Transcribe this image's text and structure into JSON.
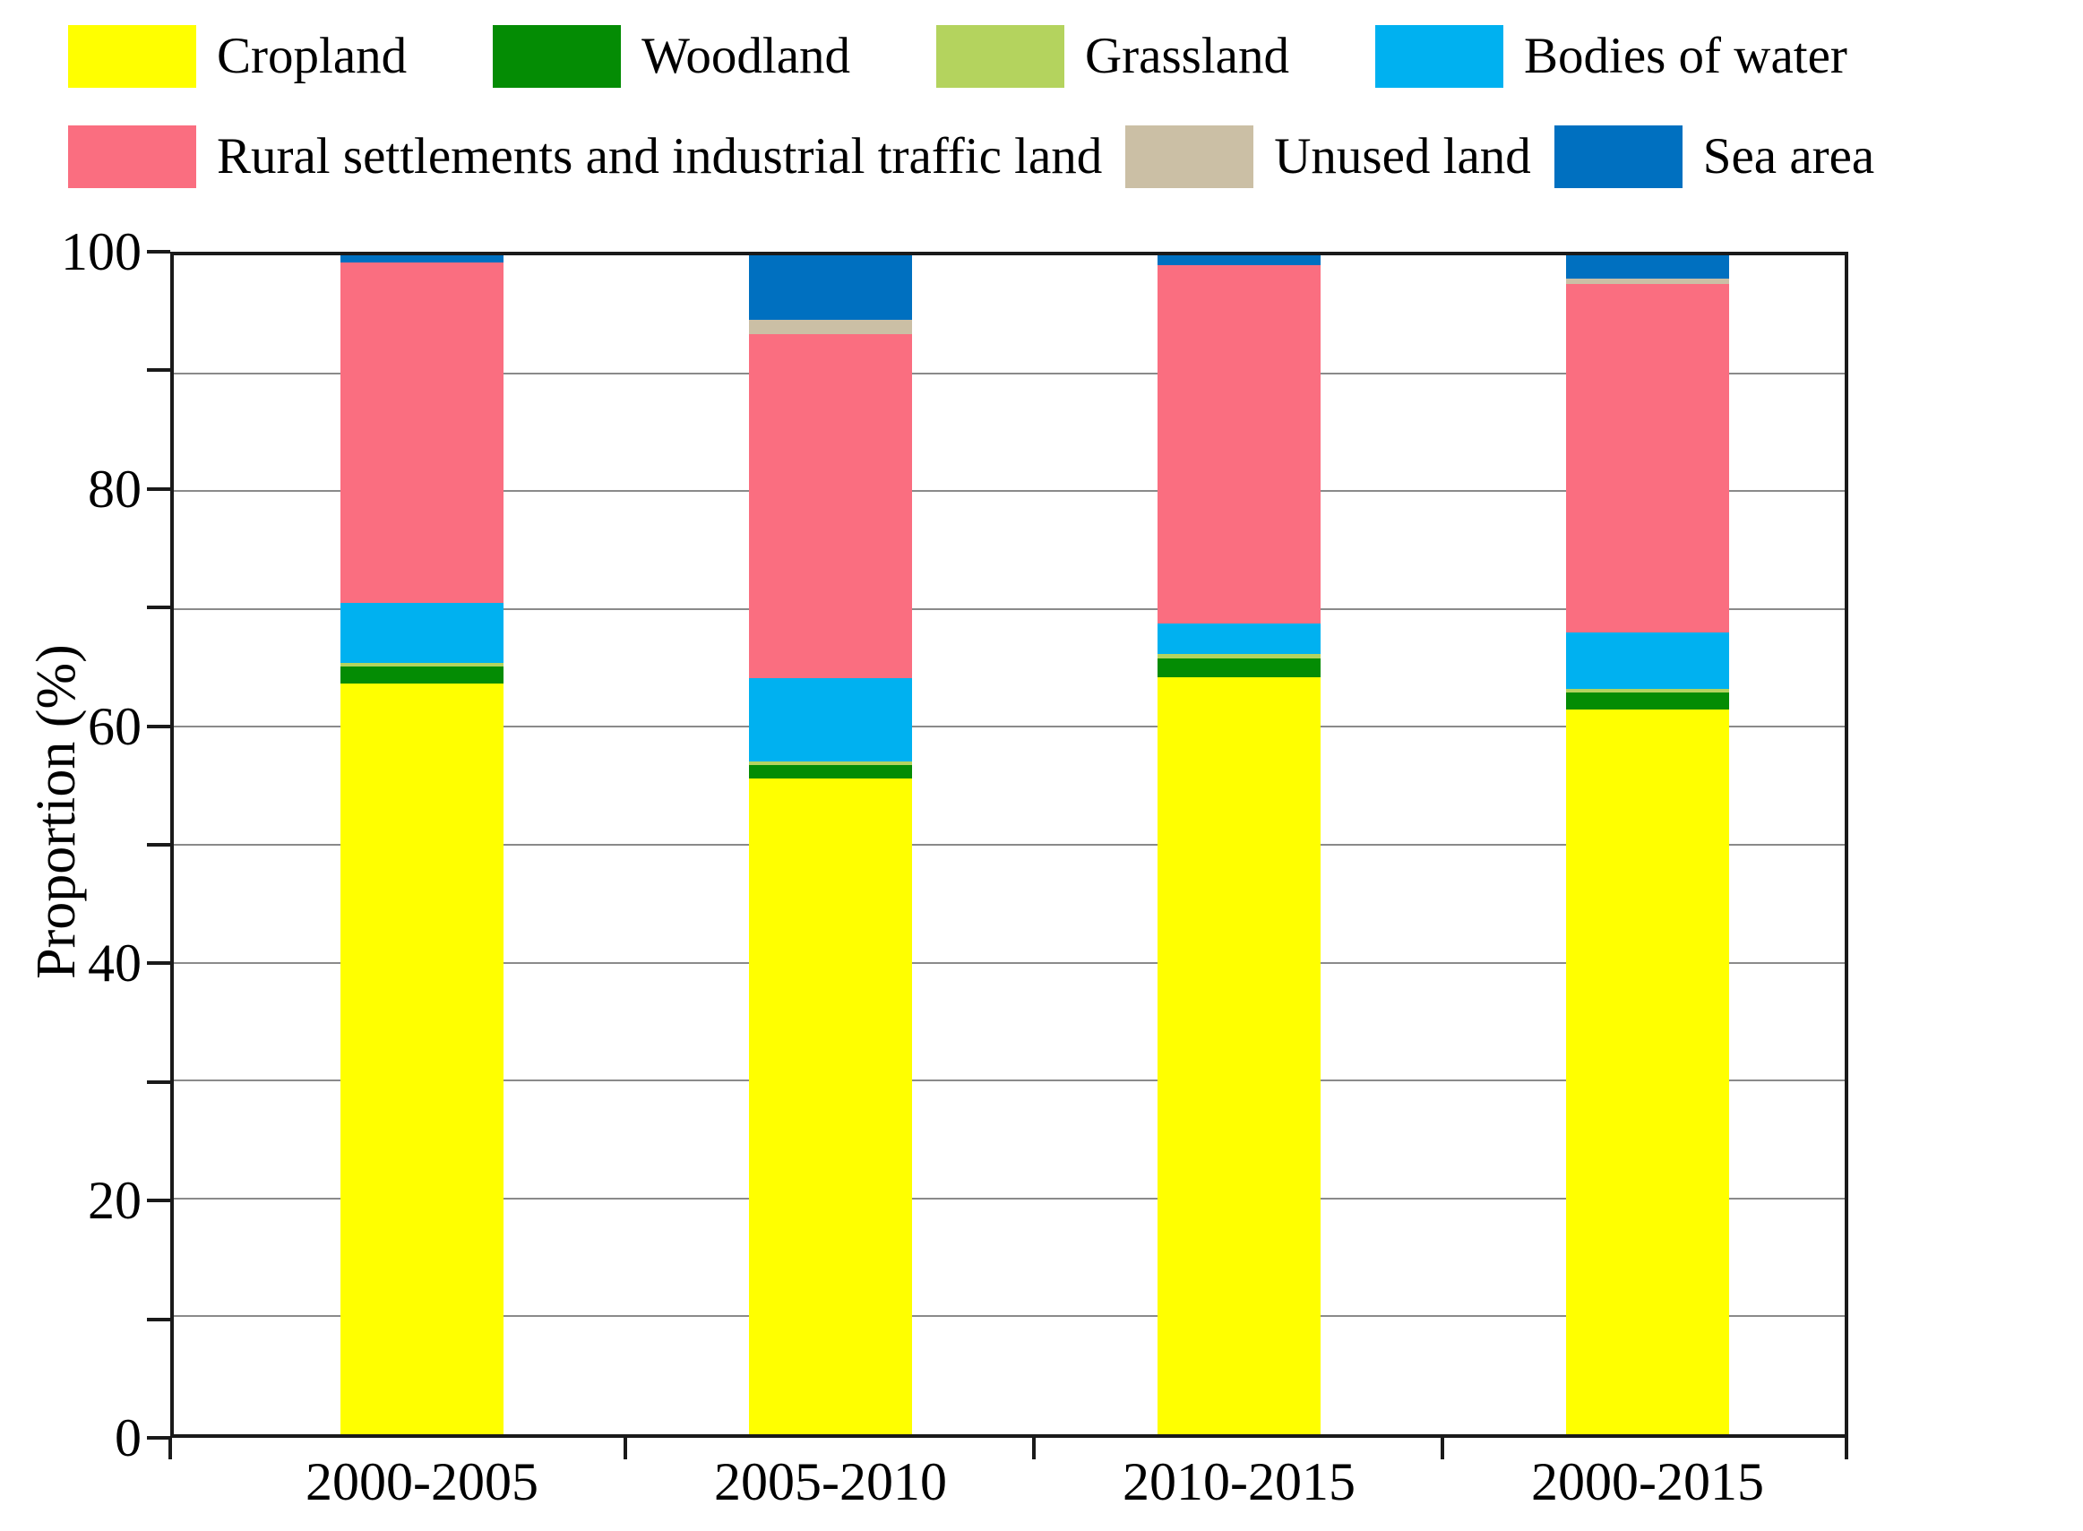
{
  "figure": {
    "background": "#ffffff",
    "axis_color": "#1a1a1a",
    "gridline_color": "#8a8a8a",
    "text_color": "#000000"
  },
  "chart_data": {
    "type": "bar",
    "stacked": true,
    "orientation": "vertical",
    "title": "",
    "xlabel": "",
    "ylabel": "Proportion (%)",
    "ylim": [
      0,
      100
    ],
    "y_major_tick_labels": [
      "0",
      "20",
      "40",
      "60",
      "80",
      "100"
    ],
    "y_major_tick_values": [
      0,
      20,
      40,
      60,
      80,
      100
    ],
    "y_gridline_step": 10,
    "grid": "horizontal-every-10",
    "legend_position": "top",
    "legend_rows": [
      [
        0,
        1,
        2,
        3
      ],
      [
        4,
        5,
        6
      ]
    ],
    "categories": [
      "2000-2005",
      "2005-2010",
      "2010-2015",
      "2000-2015"
    ],
    "series": [
      {
        "name": "Cropland",
        "color": "#FFFF00",
        "values": [
          63.7,
          55.6,
          64.2,
          61.5
        ]
      },
      {
        "name": "Woodland",
        "color": "#048C04",
        "values": [
          1.4,
          1.2,
          1.6,
          1.4
        ]
      },
      {
        "name": "Grassland",
        "color": "#B4D35E",
        "values": [
          0.3,
          0.3,
          0.4,
          0.3
        ]
      },
      {
        "name": "Bodies of water",
        "color": "#00B1F0",
        "values": [
          5.1,
          7.0,
          2.6,
          4.8
        ]
      },
      {
        "name": "Rural settlements and industrial traffic land",
        "color": "#FA6E80",
        "values": [
          28.9,
          29.2,
          30.4,
          29.6
        ]
      },
      {
        "name": "Unused land",
        "color": "#CBBFA5",
        "values": [
          0,
          1.2,
          0,
          0.4
        ]
      },
      {
        "name": "Sea area",
        "color": "#0070C0",
        "values": [
          0.6,
          5.5,
          0.8,
          2.0
        ]
      }
    ]
  }
}
